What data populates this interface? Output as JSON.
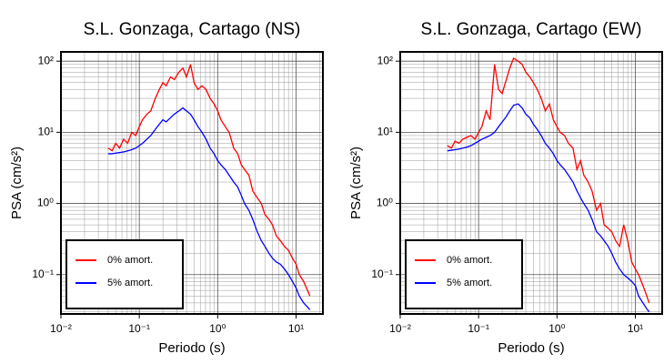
{
  "chart_data": [
    {
      "type": "line",
      "title": "S.L. Gonzaga, Cartago (NS)",
      "xlabel": "Periodo (s)",
      "ylabel": "PSA (cm/s²)",
      "log_x": true,
      "log_y": true,
      "grid": true,
      "legend": "lower left",
      "xlim": [
        0.01,
        22
      ],
      "ylim": [
        0.028,
        135
      ],
      "xticks": [
        {
          "value": 0.01,
          "label": "10⁻²"
        },
        {
          "value": 0.1,
          "label": "10⁻¹"
        },
        {
          "value": 1,
          "label": "10⁰"
        },
        {
          "value": 10,
          "label": "10¹"
        }
      ],
      "yticks": [
        {
          "value": 0.1,
          "label": "10⁻¹"
        },
        {
          "value": 1,
          "label": "10⁰"
        },
        {
          "value": 10,
          "label": "10¹"
        },
        {
          "value": 100,
          "label": "10²"
        }
      ],
      "x": [
        0.04,
        0.045,
        0.05,
        0.056,
        0.063,
        0.071,
        0.08,
        0.09,
        0.1,
        0.11,
        0.125,
        0.14,
        0.16,
        0.18,
        0.2,
        0.22,
        0.25,
        0.28,
        0.32,
        0.36,
        0.4,
        0.45,
        0.5,
        0.56,
        0.63,
        0.71,
        0.8,
        0.9,
        1.0,
        1.1,
        1.25,
        1.4,
        1.6,
        1.8,
        2.0,
        2.2,
        2.5,
        2.8,
        3.2,
        3.6,
        4.0,
        4.5,
        5.0,
        5.6,
        6.3,
        7.1,
        8.0,
        9.0,
        10,
        11,
        12.5,
        14,
        15
      ],
      "series": [
        {
          "name": "0% amort.",
          "color": "#ff0000",
          "values": [
            6,
            5.5,
            7,
            6,
            8,
            7,
            10,
            9,
            12,
            15,
            18,
            20,
            30,
            40,
            50,
            45,
            60,
            55,
            70,
            80,
            60,
            90,
            50,
            40,
            45,
            40,
            30,
            25,
            20,
            15,
            12,
            10,
            6,
            5,
            3.5,
            3,
            2.5,
            1.5,
            1.2,
            1.0,
            0.7,
            0.6,
            0.5,
            0.35,
            0.3,
            0.25,
            0.22,
            0.17,
            0.14,
            0.1,
            0.08,
            0.06,
            0.05
          ]
        },
        {
          "name": "5% amort.",
          "color": "#0000ff",
          "values": [
            5,
            5,
            5.1,
            5.2,
            5.3,
            5.5,
            5.7,
            6,
            6.5,
            7,
            8,
            9,
            11,
            13,
            15,
            14,
            16,
            18,
            20,
            22,
            20,
            18,
            15,
            12,
            10,
            8,
            6,
            5,
            4,
            3.5,
            3,
            2.5,
            2,
            1.7,
            1.3,
            1.0,
            0.8,
            0.6,
            0.4,
            0.3,
            0.25,
            0.2,
            0.17,
            0.15,
            0.14,
            0.12,
            0.1,
            0.08,
            0.065,
            0.05,
            0.04,
            0.035,
            0.032
          ]
        }
      ]
    },
    {
      "type": "line",
      "title": "S.L. Gonzaga, Cartago (EW)",
      "xlabel": "Periodo (s)",
      "ylabel": "PSA (cm/s²)",
      "log_x": true,
      "log_y": true,
      "grid": true,
      "legend": "lower left",
      "xlim": [
        0.01,
        22
      ],
      "ylim": [
        0.028,
        135
      ],
      "xticks": [
        {
          "value": 0.01,
          "label": "10⁻²"
        },
        {
          "value": 0.1,
          "label": "10⁻¹"
        },
        {
          "value": 1,
          "label": "10⁰"
        },
        {
          "value": 10,
          "label": "10¹"
        }
      ],
      "yticks": [
        {
          "value": 0.1,
          "label": "10⁻¹"
        },
        {
          "value": 1,
          "label": "10⁰"
        },
        {
          "value": 10,
          "label": "10¹"
        },
        {
          "value": 100,
          "label": "10²"
        }
      ],
      "x": [
        0.04,
        0.045,
        0.05,
        0.056,
        0.063,
        0.071,
        0.08,
        0.09,
        0.1,
        0.11,
        0.125,
        0.14,
        0.16,
        0.18,
        0.2,
        0.22,
        0.25,
        0.28,
        0.32,
        0.36,
        0.4,
        0.45,
        0.5,
        0.56,
        0.63,
        0.71,
        0.8,
        0.9,
        1.0,
        1.1,
        1.25,
        1.4,
        1.6,
        1.8,
        2.0,
        2.2,
        2.5,
        2.8,
        3.2,
        3.6,
        4.0,
        4.5,
        5.0,
        5.6,
        6.3,
        7.1,
        8.0,
        9.0,
        10,
        11,
        12.5,
        14,
        15
      ],
      "series": [
        {
          "name": "0% amort.",
          "color": "#ff0000",
          "values": [
            6.5,
            6,
            7.5,
            7,
            8,
            8.5,
            9,
            8,
            10,
            12,
            20,
            15,
            90,
            40,
            35,
            50,
            80,
            110,
            100,
            90,
            70,
            60,
            50,
            40,
            30,
            20,
            25,
            15,
            12,
            10,
            9,
            7,
            6,
            3,
            4,
            2.5,
            2,
            1.5,
            0.8,
            1.0,
            0.5,
            0.45,
            0.4,
            0.3,
            0.25,
            0.5,
            0.3,
            0.15,
            0.12,
            0.1,
            0.07,
            0.05,
            0.04
          ]
        },
        {
          "name": "5% amort.",
          "color": "#0000ff",
          "values": [
            5.5,
            5.6,
            5.7,
            5.8,
            6,
            6.2,
            6.5,
            7,
            7.5,
            8,
            8.5,
            9,
            10,
            12,
            14,
            16,
            20,
            24,
            25,
            22,
            18,
            16,
            13,
            11,
            9,
            7,
            6,
            5,
            4,
            3.5,
            3,
            2.5,
            2,
            1.5,
            1.2,
            1.0,
            0.8,
            0.6,
            0.4,
            0.35,
            0.3,
            0.25,
            0.2,
            0.15,
            0.12,
            0.1,
            0.09,
            0.08,
            0.07,
            0.05,
            0.04,
            0.033,
            0.03
          ]
        }
      ]
    }
  ]
}
